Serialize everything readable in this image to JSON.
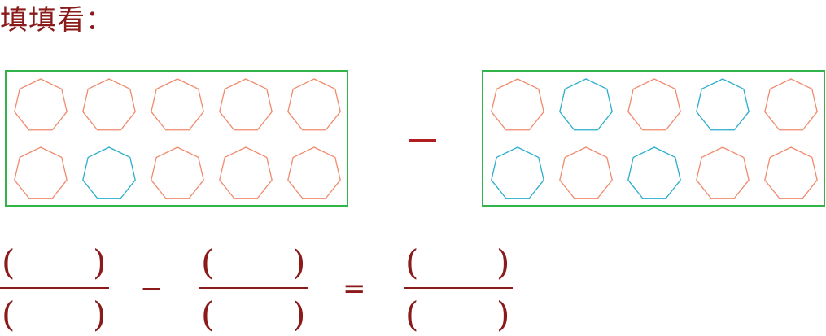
{
  "title": "填填看：",
  "colors": {
    "filled": "#f08a6c",
    "empty": "#2aaecb",
    "frame": "#33b44a",
    "text": "#8b1a1a"
  },
  "left_box": {
    "rows": [
      [
        "filled",
        "filled",
        "filled",
        "filled",
        "filled"
      ],
      [
        "filled",
        "empty",
        "filled",
        "filled",
        "filled"
      ]
    ]
  },
  "right_box": {
    "rows": [
      [
        "filled",
        "empty",
        "filled",
        "empty",
        "filled"
      ],
      [
        "empty",
        "filled",
        "empty",
        "filled",
        "filled"
      ]
    ]
  },
  "operator_between_boxes": "minus",
  "equation": {
    "open_paren": "(",
    "close_paren": ")",
    "minus": "−",
    "equals": "="
  }
}
